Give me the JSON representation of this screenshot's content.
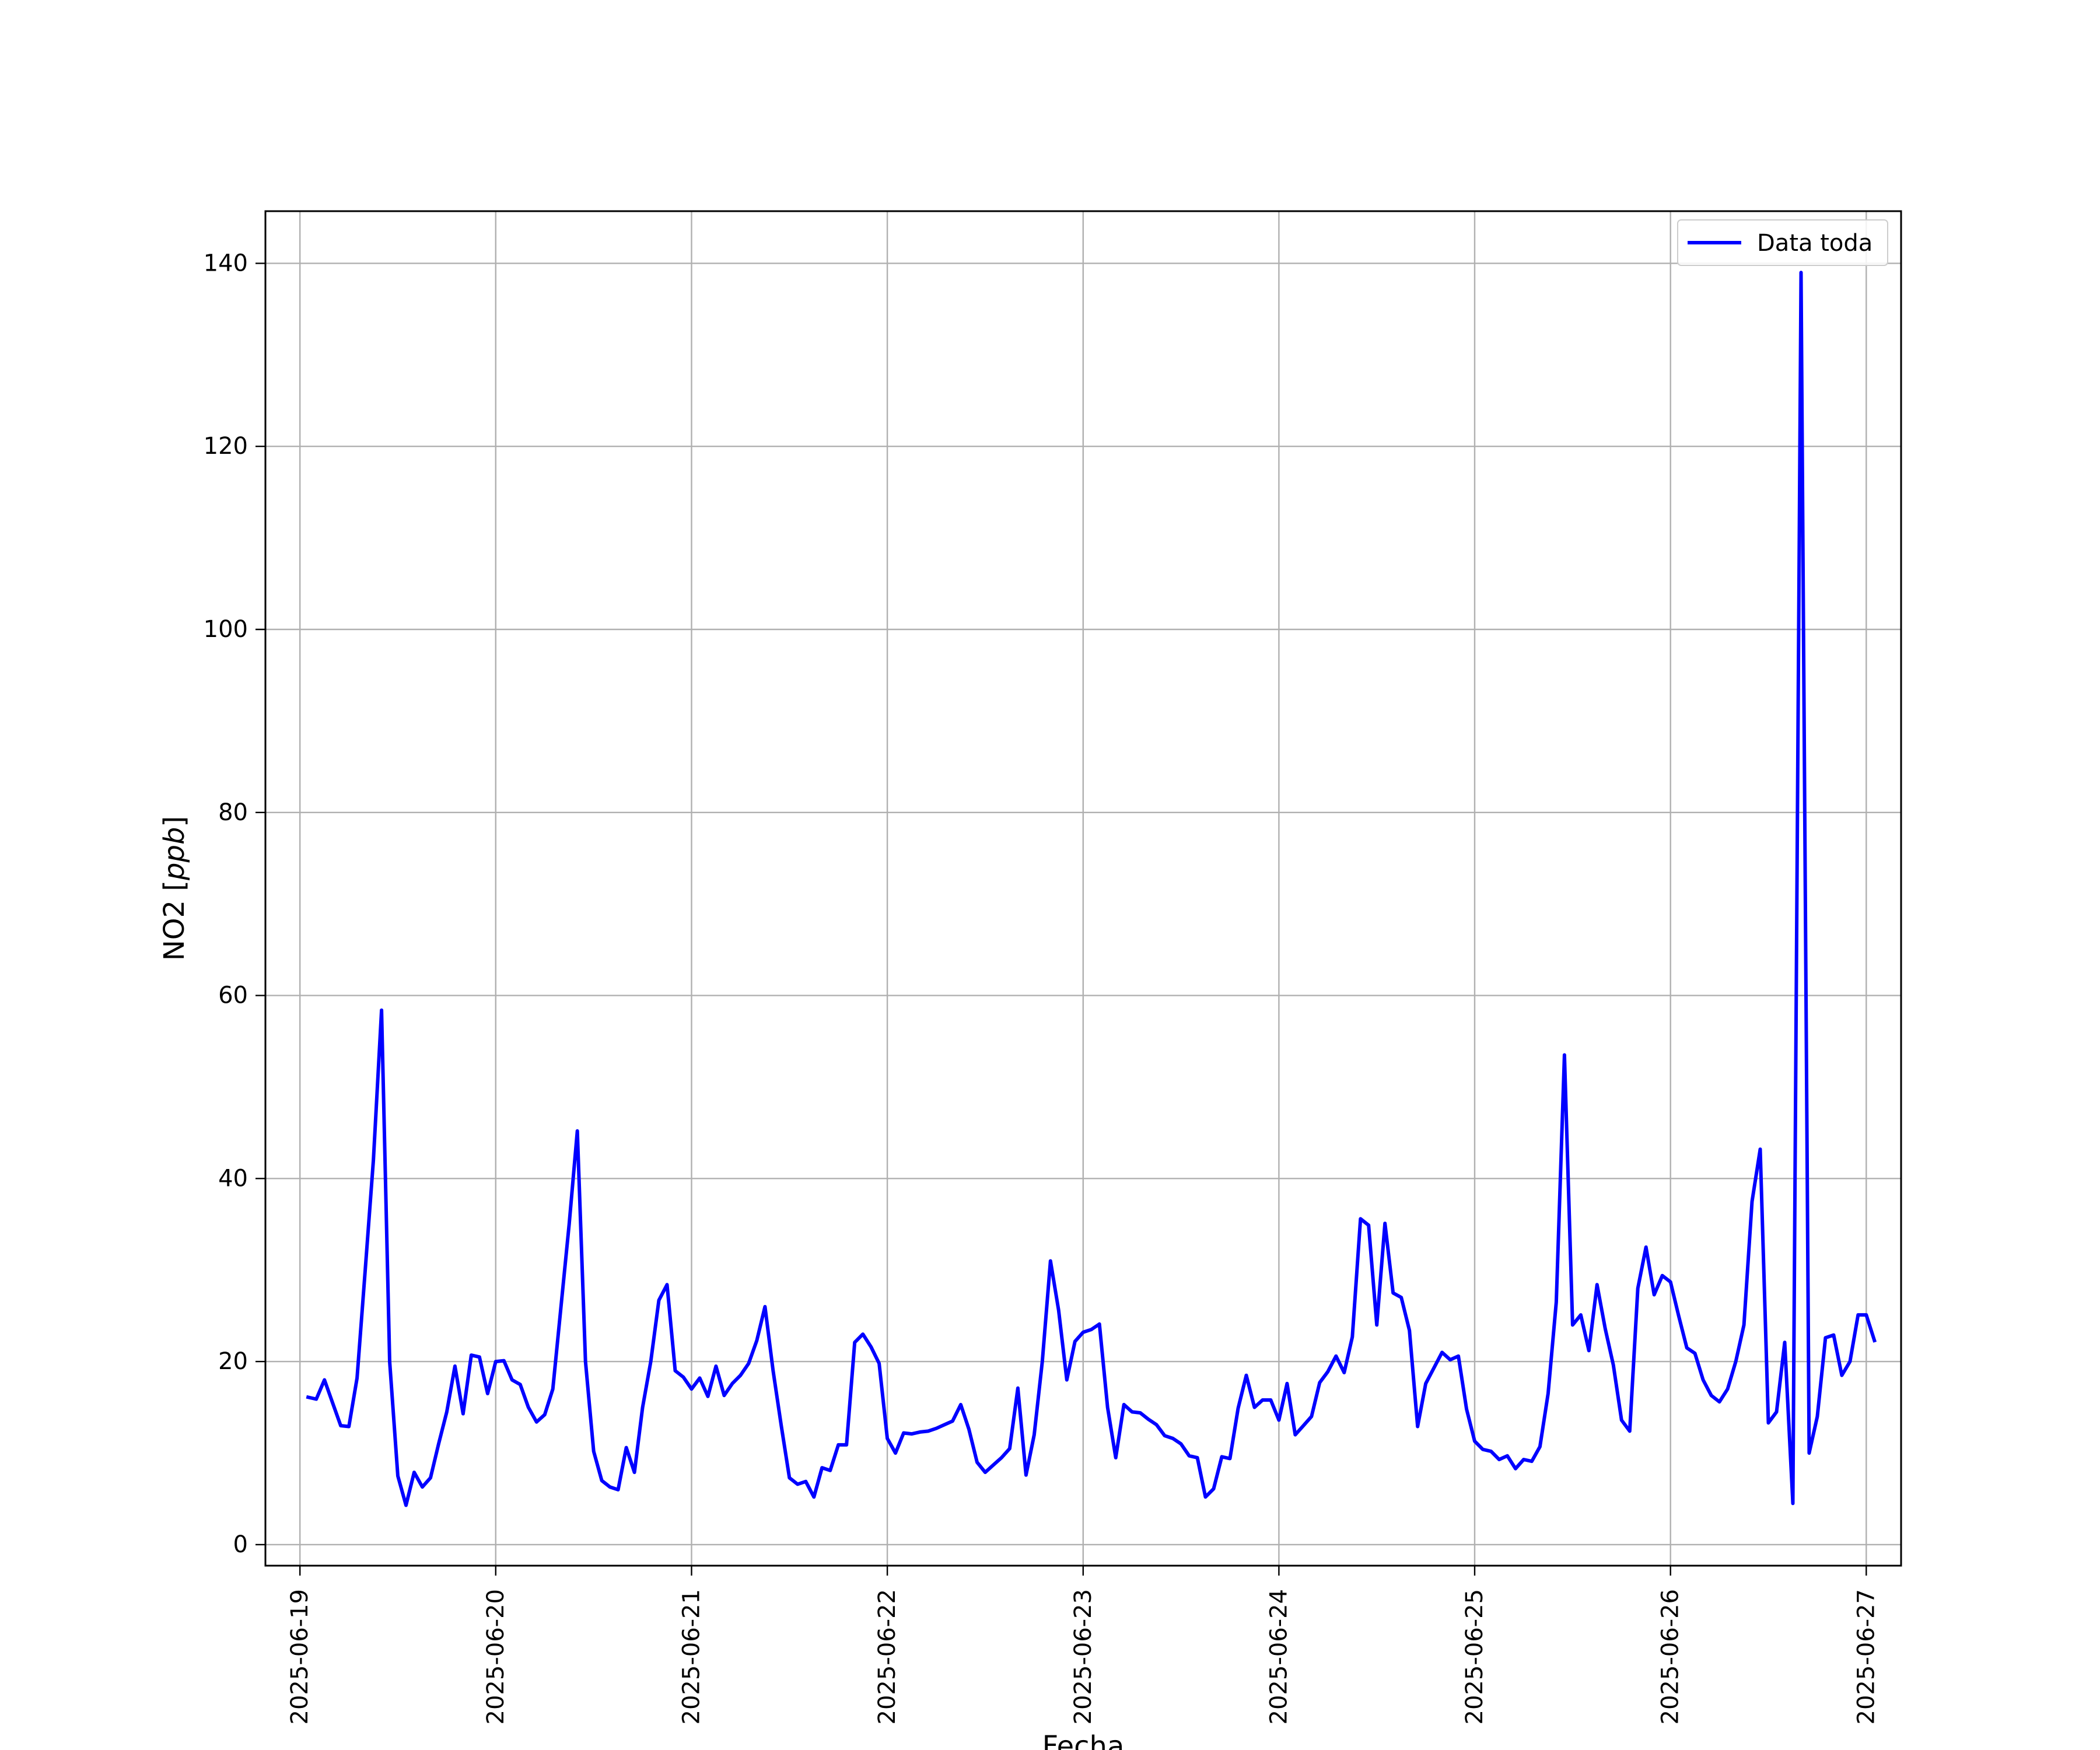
{
  "chart_data": {
    "type": "line",
    "title": "",
    "xlabel": "Fecha",
    "ylabel": "NO2 [ppb]",
    "ylabel_plain": "NO2 [",
    "ylabel_unit": "ppb",
    "ylabel_close": "]",
    "x_axis_type": "datetime",
    "xlim": [
      "2025-06-18T19:46",
      "2025-06-27T04:16"
    ],
    "ylim": [
      -2.3,
      145.7
    ],
    "x_ticks": [
      "2025-06-19",
      "2025-06-20",
      "2025-06-21",
      "2025-06-22",
      "2025-06-23",
      "2025-06-24",
      "2025-06-25",
      "2025-06-26",
      "2025-06-27"
    ],
    "y_ticks": [
      0,
      20,
      40,
      60,
      80,
      100,
      120,
      140
    ],
    "grid": true,
    "legend_position": "top-right",
    "series": [
      {
        "name": "Data toda",
        "color": "#0000ff",
        "start": "2025-06-19T01:00",
        "interval_hours": 1,
        "values": [
          16.1,
          15.9,
          18.0,
          15.5,
          13.0,
          12.9,
          18.2,
          30.0,
          42.0,
          58.4,
          20.0,
          7.5,
          4.3,
          7.9,
          6.3,
          7.3,
          11.0,
          14.5,
          19.5,
          14.3,
          20.7,
          20.5,
          16.5,
          20.0,
          20.1,
          18.0,
          17.5,
          15.0,
          13.4,
          14.2,
          17.0,
          26.0,
          35.0,
          45.2,
          20.0,
          10.2,
          7.0,
          6.3,
          6.0,
          10.6,
          7.9,
          15.0,
          20.0,
          26.7,
          28.4,
          19.0,
          18.3,
          17.0,
          18.2,
          16.2,
          19.5,
          16.3,
          17.6,
          18.5,
          19.8,
          22.3,
          26.0,
          19.0,
          13.0,
          7.3,
          6.6,
          6.9,
          5.2,
          8.4,
          8.1,
          10.9,
          10.9,
          22.1,
          23.0,
          21.6,
          19.8,
          11.6,
          10.0,
          12.2,
          12.1,
          12.3,
          12.4,
          12.7,
          13.1,
          13.5,
          15.3,
          12.6,
          9.0,
          7.9,
          8.7,
          9.5,
          10.5,
          17.1,
          7.6,
          12.0,
          20.0,
          31.0,
          25.6,
          18.0,
          22.2,
          23.2,
          23.5,
          24.1,
          15.0,
          9.5,
          15.3,
          14.5,
          14.4,
          13.7,
          13.1,
          11.9,
          11.6,
          11.0,
          9.7,
          9.5,
          5.2,
          6.1,
          9.6,
          9.4,
          14.9,
          18.5,
          15.0,
          15.8,
          15.8,
          13.6,
          17.6,
          12.0,
          13.0,
          14.0,
          17.7,
          18.9,
          20.6,
          18.8,
          22.7,
          35.6,
          34.9,
          24.0,
          35.1,
          27.5,
          27.0,
          23.4,
          12.9,
          17.6,
          19.3,
          21.0,
          20.2,
          20.6,
          14.8,
          11.3,
          10.4,
          10.2,
          9.3,
          9.7,
          8.3,
          9.3,
          9.1,
          10.7,
          16.5,
          26.5,
          53.5,
          24.0,
          25.1,
          21.2,
          28.4,
          23.6,
          19.6,
          13.6,
          12.4,
          28.0,
          32.5,
          27.3,
          29.4,
          28.7,
          25.0,
          21.5,
          20.9,
          18.0,
          16.3,
          15.6,
          17.0,
          20.0,
          24.0,
          37.5,
          43.2,
          13.3,
          14.5,
          22.1,
          4.5,
          139.0,
          10.0,
          14.0,
          22.6,
          22.9,
          18.5,
          20.0,
          25.1,
          25.1,
          22.3
        ]
      }
    ]
  }
}
